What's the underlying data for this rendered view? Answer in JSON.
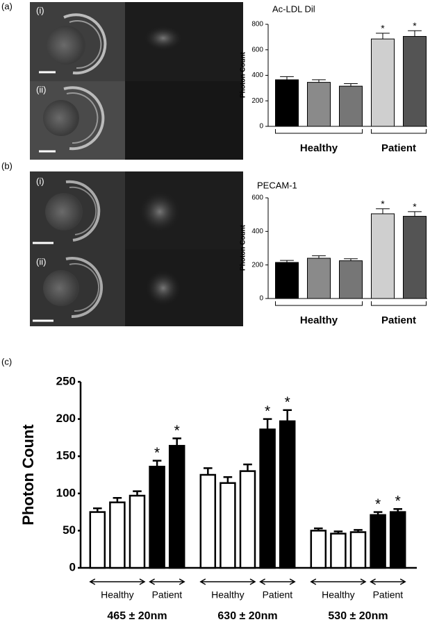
{
  "panels": {
    "a": {
      "label": "(a)",
      "images": [
        "(i)",
        "(ii)"
      ]
    },
    "b": {
      "label": "(b)",
      "images": [
        "(i)",
        "(ii)"
      ]
    },
    "c": {
      "label": "(c)"
    }
  },
  "chart_data": [
    {
      "type": "bar",
      "title": "Ac-LDL Dil",
      "y_label": "Photon Count",
      "categories": [
        null,
        null,
        null,
        null,
        null
      ],
      "values": [
        365,
        345,
        315,
        685,
        705
      ],
      "errors": [
        25,
        20,
        20,
        45,
        45
      ],
      "colors": [
        "#000000",
        "#8a8a8a",
        "#767676",
        "#cfcfcf",
        "#545454"
      ],
      "group": [
        "Healthy",
        "Healthy",
        "Healthy",
        "Patient",
        "Patient"
      ],
      "significance": [
        null,
        null,
        null,
        "*",
        "*"
      ],
      "ylim": [
        0,
        800
      ],
      "yticks": [
        0,
        200,
        400,
        600,
        800
      ]
    },
    {
      "type": "bar",
      "title": "PECAM-1",
      "y_label": "Photon Count",
      "categories": [
        null,
        null,
        null,
        null,
        null
      ],
      "values": [
        215,
        240,
        225,
        505,
        490
      ],
      "errors": [
        12,
        15,
        12,
        30,
        28
      ],
      "colors": [
        "#000000",
        "#8a8a8a",
        "#767676",
        "#cfcfcf",
        "#545454"
      ],
      "group": [
        "Healthy",
        "Healthy",
        "Healthy",
        "Patient",
        "Patient"
      ],
      "significance": [
        null,
        null,
        null,
        "*",
        "*"
      ],
      "ylim": [
        0,
        600
      ],
      "yticks": [
        0,
        200,
        400,
        600
      ]
    },
    {
      "type": "bar",
      "y_label": "Photon Count",
      "series": [
        {
          "name": "465 ± 20nm",
          "values": [
            75,
            88,
            97,
            136,
            164
          ],
          "errors": [
            5,
            6,
            6,
            8,
            10
          ],
          "colors": [
            "#ffffff",
            "#ffffff",
            "#ffffff",
            "#000000",
            "#000000"
          ],
          "group": [
            "Healthy",
            "Healthy",
            "Healthy",
            "Patient",
            "Patient"
          ],
          "significance": [
            null,
            null,
            null,
            "*",
            "*"
          ]
        },
        {
          "name": "630 ± 20nm",
          "values": [
            125,
            114,
            130,
            186,
            197
          ],
          "errors": [
            9,
            8,
            9,
            14,
            15
          ],
          "colors": [
            "#ffffff",
            "#ffffff",
            "#ffffff",
            "#000000",
            "#000000"
          ],
          "group": [
            "Healthy",
            "Healthy",
            "Healthy",
            "Patient",
            "Patient"
          ],
          "significance": [
            null,
            null,
            null,
            "*",
            "*"
          ]
        },
        {
          "name": "530 ± 20nm",
          "values": [
            50,
            46,
            48,
            71,
            75
          ],
          "errors": [
            3,
            3,
            3,
            4,
            4
          ],
          "colors": [
            "#ffffff",
            "#ffffff",
            "#ffffff",
            "#000000",
            "#000000"
          ],
          "group": [
            "Healthy",
            "Healthy",
            "Healthy",
            "Patient",
            "Patient"
          ],
          "significance": [
            null,
            null,
            null,
            "*",
            "*"
          ]
        }
      ],
      "ylim": [
        0,
        250
      ],
      "yticks": [
        0,
        50,
        100,
        150,
        200,
        250
      ]
    }
  ]
}
